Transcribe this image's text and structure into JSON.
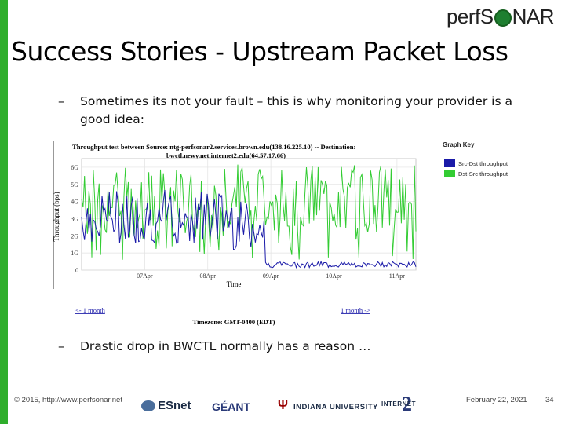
{
  "header": {
    "logo_text_before": "perfS",
    "logo_text_after": "NAR",
    "title": "Success Stories - Upstream Packet Loss"
  },
  "bullets": [
    {
      "dash": "–",
      "text": "Sometimes its not your fault – this is why monitoring your provider is a good idea:"
    },
    {
      "dash": "–",
      "text": "Drastic drop in BWCTL normally has a reason …"
    }
  ],
  "chart_data": {
    "type": "line",
    "title_line1": "Throughput test between Source: ntg-perfsonar2.services.brown.edu(138.16.225.10) -- Destination:",
    "title_line2": "bwctl.newy.net.internet2.edu(64.57.17.66)",
    "ylabel": "Throughput (bps)",
    "xlabel": "Time",
    "y_ticks": [
      "0",
      "1G",
      "2G",
      "3G",
      "4G",
      "5G",
      "6G"
    ],
    "x_ticks": [
      "07Apr",
      "08Apr",
      "09Apr",
      "10Apr",
      "11Apr"
    ],
    "ylim": [
      0,
      6.5
    ],
    "legend_title": "Graph Key",
    "legend_position": "right",
    "series": [
      {
        "name": "Src-Dst throughput",
        "color": "#1a1aa8"
      },
      {
        "name": "Dst-Src throughput",
        "color": "#33cc33"
      }
    ],
    "timezone": "Timezone: GMT-0400 (EDT)",
    "nav_prev": "<- 1 month",
    "nav_next": "1 month ->"
  },
  "footer": {
    "copyright": "© 2015, http://www.perfsonar.net",
    "esnet": "ESnet",
    "geant": "GÉANT",
    "iu": "INDIANA UNIVERSITY",
    "internet2": "INTERNET",
    "date": "February 22, 2021",
    "page": "34"
  }
}
